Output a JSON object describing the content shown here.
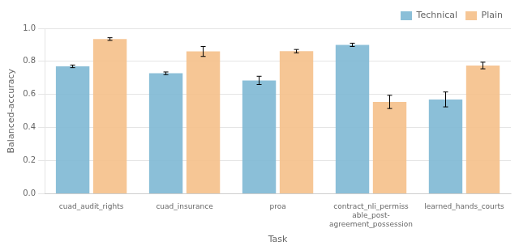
{
  "chart_data": {
    "type": "bar",
    "xlabel": "Task",
    "ylabel": "Balanced-accuracy",
    "categories": [
      "cuad_audit_rights",
      "cuad_insurance",
      "proa",
      "contract_nli_permiss\nable_post-\nagreement_possession",
      "learned_hands_courts"
    ],
    "series": [
      {
        "name": "Technical",
        "color": "#7eb8d4",
        "values": [
          0.77,
          0.728,
          0.685,
          0.9,
          0.57
        ],
        "errors": [
          0.008,
          0.008,
          0.025,
          0.01,
          0.045
        ]
      },
      {
        "name": "Plain",
        "color": "#f5c08a",
        "values": [
          0.935,
          0.86,
          0.862,
          0.555,
          0.775
        ],
        "errors": [
          0.008,
          0.03,
          0.01,
          0.04,
          0.02
        ]
      }
    ],
    "ylim": [
      0.0,
      1.0
    ],
    "yticks": [
      {
        "value": 0,
        "label": "0.0"
      },
      0.2,
      0.4,
      0.6,
      0.8,
      {
        "value": 1,
        "label": "1.0"
      }
    ],
    "grid": true,
    "legend": "upper right"
  }
}
